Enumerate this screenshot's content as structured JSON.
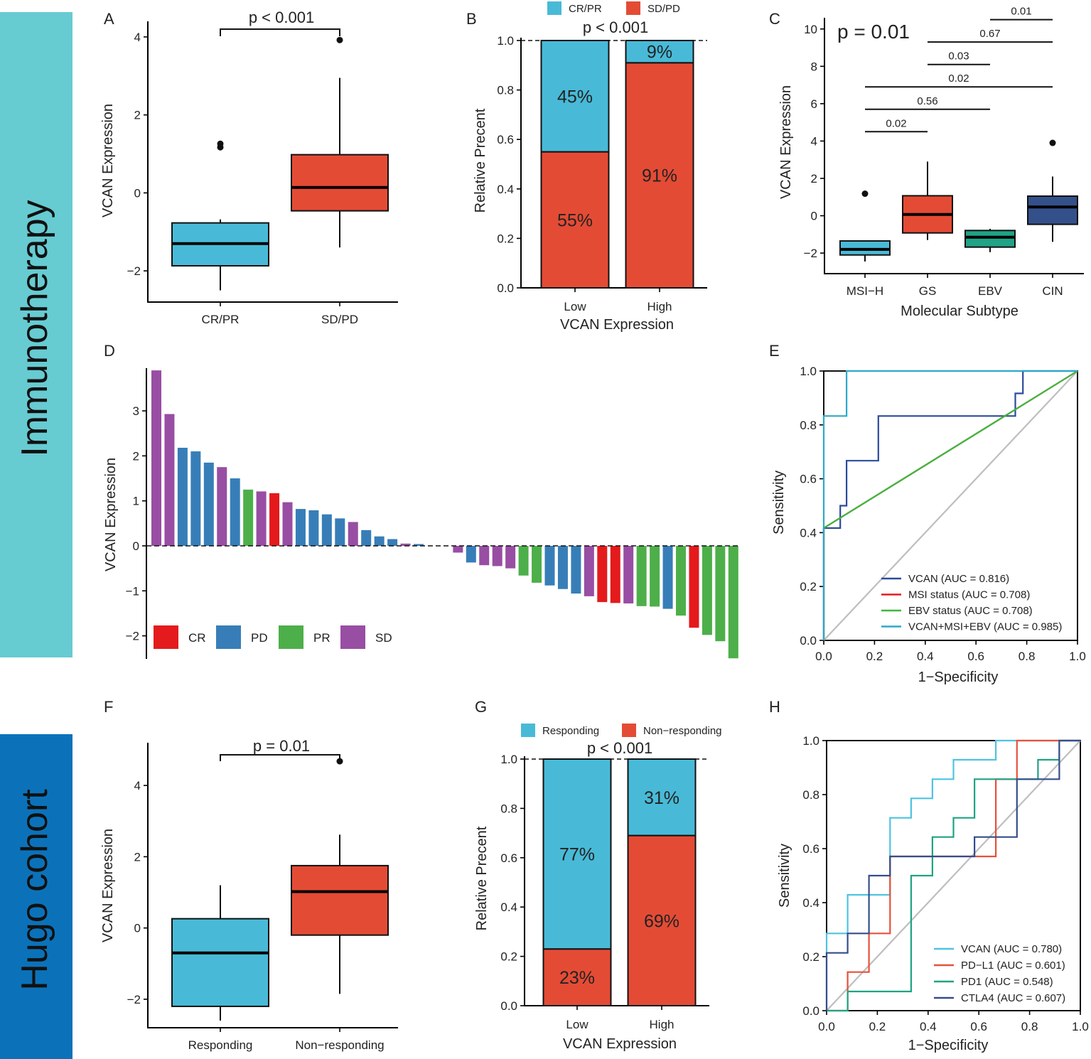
{
  "sidebars": {
    "immunotherapy": {
      "label": "Immunotherapy",
      "color": "#67CBD2"
    },
    "hugo": {
      "label": "Hugo cohort",
      "color": "#0B72BA"
    }
  },
  "colors": {
    "light_blue": "#48BAD7",
    "red": "#E44B35",
    "teal": "#20A386",
    "navy": "#34508A"
  },
  "chart_data": [
    {
      "panel": "A",
      "type": "box",
      "ylabel": "VCAN Expression",
      "ylim": [
        -2.8,
        4.4
      ],
      "yticks": [
        {
          "v": 4,
          "t": "4"
        },
        {
          "v": 2,
          "t": "2"
        },
        {
          "v": 0,
          "t": "0"
        },
        {
          "v": -2,
          "t": "−2"
        }
      ],
      "pvalue": "p < 0.001",
      "groups": [
        {
          "name": "CR/PR",
          "color": "#48BAD7",
          "q1": -1.87,
          "median": -1.3,
          "q3": -0.77,
          "whisker_low": -2.5,
          "whisker_high": -0.68,
          "outliers": [
            1.17,
            1.26
          ]
        },
        {
          "name": "SD/PD",
          "color": "#E44B35",
          "q1": -0.46,
          "median": 0.14,
          "q3": 0.98,
          "whisker_low": -1.4,
          "whisker_high": 2.95,
          "outliers": [
            3.92
          ]
        }
      ]
    },
    {
      "panel": "B",
      "type": "bar",
      "ylabel": "Relative Precent",
      "xlabel": "VCAN Expression",
      "ylim": [
        0,
        1
      ],
      "yticks": [
        "0.0",
        "0.2",
        "0.4",
        "0.6",
        "0.8",
        "1.0"
      ],
      "pvalue": "p < 0.001",
      "legend": [
        "CR/PR",
        "SD/PD"
      ],
      "categories": [
        "Low",
        "High"
      ],
      "series": [
        {
          "name": "SD/PD",
          "color": "#E44B35",
          "values": [
            0.55,
            0.91
          ],
          "labels": [
            "55%",
            "91%"
          ]
        },
        {
          "name": "CR/PR",
          "color": "#48BAD7",
          "values": [
            0.45,
            0.09
          ],
          "labels": [
            "45%",
            "9%"
          ]
        }
      ]
    },
    {
      "panel": "C",
      "type": "box",
      "ylabel": "VCAN Expression",
      "xlabel": "Molecular Subtype",
      "ylim": [
        -3.1,
        10.6
      ],
      "yticks": [
        {
          "v": 10,
          "t": "10"
        },
        {
          "v": 8,
          "t": "8"
        },
        {
          "v": 6,
          "t": "6"
        },
        {
          "v": 4,
          "t": "4"
        },
        {
          "v": 2,
          "t": "2"
        },
        {
          "v": 0,
          "t": "0"
        },
        {
          "v": -2,
          "t": "−2"
        }
      ],
      "pvalue": "p = 0.01",
      "groups": [
        {
          "name": "MSI−H",
          "color": "#48BAD7",
          "q1": -2.1,
          "median": -1.8,
          "q3": -1.35,
          "whisker_low": -2.45,
          "whisker_high": -1.35,
          "outliers": [
            1.18
          ]
        },
        {
          "name": "GS",
          "color": "#E44B35",
          "q1": -0.92,
          "median": 0.07,
          "q3": 1.07,
          "whisker_low": -1.3,
          "whisker_high": 2.9,
          "outliers": []
        },
        {
          "name": "EBV",
          "color": "#20A386",
          "q1": -1.68,
          "median": -1.15,
          "q3": -0.79,
          "whisker_low": -1.95,
          "whisker_high": -0.7,
          "outliers": []
        },
        {
          "name": "CIN",
          "color": "#34508A",
          "q1": -0.46,
          "median": 0.47,
          "q3": 1.05,
          "whisker_low": -1.4,
          "whisker_high": 2.1,
          "outliers": [
            3.9
          ]
        }
      ],
      "comparisons": [
        {
          "a": 0,
          "b": 1,
          "y": 4.5,
          "label": "0.02"
        },
        {
          "a": 0,
          "b": 2,
          "y": 5.7,
          "label": "0.56"
        },
        {
          "a": 0,
          "b": 3,
          "y": 6.9,
          "label": "0.02"
        },
        {
          "a": 1,
          "b": 2,
          "y": 8.1,
          "label": "0.03"
        },
        {
          "a": 1,
          "b": 3,
          "y": 9.3,
          "label": "0.67"
        },
        {
          "a": 2,
          "b": 3,
          "y": 10.5,
          "label": "0.01"
        }
      ]
    },
    {
      "panel": "D",
      "type": "bar",
      "ylabel": "VCAN Expression",
      "ylim": [
        -2.5,
        3.9
      ],
      "yticks": [
        {
          "v": 3,
          "t": "3"
        },
        {
          "v": 2,
          "t": "2"
        },
        {
          "v": 1,
          "t": "1"
        },
        {
          "v": 0,
          "t": "0"
        },
        {
          "v": -1,
          "t": "−1"
        },
        {
          "v": -2,
          "t": "−2"
        }
      ],
      "legend": [
        {
          "name": "CR",
          "color": "#E41A1C"
        },
        {
          "name": "PD",
          "color": "#377EB8"
        },
        {
          "name": "PR",
          "color": "#4DAF4A"
        },
        {
          "name": "SD",
          "color": "#984EA3"
        }
      ],
      "bars": [
        {
          "v": 3.9,
          "c": "SD"
        },
        {
          "v": 2.93,
          "c": "SD"
        },
        {
          "v": 2.18,
          "c": "PD"
        },
        {
          "v": 2.1,
          "c": "PD"
        },
        {
          "v": 1.85,
          "c": "PD"
        },
        {
          "v": 1.75,
          "c": "SD"
        },
        {
          "v": 1.5,
          "c": "PD"
        },
        {
          "v": 1.25,
          "c": "PR"
        },
        {
          "v": 1.21,
          "c": "SD"
        },
        {
          "v": 1.17,
          "c": "CR"
        },
        {
          "v": 0.97,
          "c": "SD"
        },
        {
          "v": 0.82,
          "c": "PD"
        },
        {
          "v": 0.79,
          "c": "PD"
        },
        {
          "v": 0.7,
          "c": "PD"
        },
        {
          "v": 0.61,
          "c": "PD"
        },
        {
          "v": 0.53,
          "c": "SD"
        },
        {
          "v": 0.35,
          "c": "PD"
        },
        {
          "v": 0.21,
          "c": "PD"
        },
        {
          "v": 0.15,
          "c": "PD"
        },
        {
          "v": 0.05,
          "c": "SD"
        },
        {
          "v": 0.04,
          "c": "PD"
        },
        {
          "v": 0.0,
          "c": "PD"
        },
        {
          "v": 0.0,
          "c": "PD"
        },
        {
          "v": -0.15,
          "c": "SD"
        },
        {
          "v": -0.37,
          "c": "PD"
        },
        {
          "v": -0.43,
          "c": "SD"
        },
        {
          "v": -0.45,
          "c": "SD"
        },
        {
          "v": -0.5,
          "c": "SD"
        },
        {
          "v": -0.66,
          "c": "PR"
        },
        {
          "v": -0.82,
          "c": "PR"
        },
        {
          "v": -0.88,
          "c": "PD"
        },
        {
          "v": -0.96,
          "c": "PD"
        },
        {
          "v": -1.06,
          "c": "PD"
        },
        {
          "v": -1.12,
          "c": "SD"
        },
        {
          "v": -1.25,
          "c": "CR"
        },
        {
          "v": -1.27,
          "c": "CR"
        },
        {
          "v": -1.28,
          "c": "SD"
        },
        {
          "v": -1.34,
          "c": "PR"
        },
        {
          "v": -1.35,
          "c": "PR"
        },
        {
          "v": -1.4,
          "c": "PD"
        },
        {
          "v": -1.55,
          "c": "PR"
        },
        {
          "v": -1.82,
          "c": "CR"
        },
        {
          "v": -1.98,
          "c": "PR"
        },
        {
          "v": -2.12,
          "c": "PR"
        },
        {
          "v": -2.5,
          "c": "PR"
        }
      ]
    },
    {
      "panel": "E",
      "type": "line",
      "xlabel": "1−Specificity",
      "ylabel": "Sensitivity",
      "xlim": [
        0,
        1
      ],
      "ylim": [
        0,
        1
      ],
      "ticks": [
        "0.0",
        "0.2",
        "0.4",
        "0.6",
        "0.8",
        "1.0"
      ],
      "series": [
        {
          "name": "VCAN (AUC = 0.816)",
          "color": "#2B4B9A",
          "points": [
            [
              0,
              0
            ],
            [
              0,
              0.417
            ],
            [
              0.065,
              0.417
            ],
            [
              0.065,
              0.5
            ],
            [
              0.09,
              0.5
            ],
            [
              0.09,
              0.667
            ],
            [
              0.215,
              0.667
            ],
            [
              0.215,
              0.833
            ],
            [
              0.755,
              0.833
            ],
            [
              0.755,
              0.917
            ],
            [
              0.785,
              0.917
            ],
            [
              0.785,
              1
            ],
            [
              1,
              1
            ]
          ]
        },
        {
          "name": "MSI status (AUC = 0.708)",
          "color": "#E41A1C",
          "points": [
            [
              0,
              0
            ],
            [
              0,
              0.417
            ],
            [
              1,
              1
            ]
          ]
        },
        {
          "name": "EBV status (AUC = 0.708)",
          "color": "#3DB83D",
          "points": [
            [
              0,
              0
            ],
            [
              0,
              0.417
            ],
            [
              1,
              1
            ]
          ]
        },
        {
          "name": "VCAN+MSI+EBV (AUC = 0.985)",
          "color": "#2BA9C9",
          "points": [
            [
              0,
              0
            ],
            [
              0,
              0.833
            ],
            [
              0.09,
              0.833
            ],
            [
              0.09,
              1
            ],
            [
              1,
              1
            ]
          ]
        }
      ]
    },
    {
      "panel": "F",
      "type": "box",
      "ylabel": "VCAN Expression",
      "ylim": [
        -2.8,
        5.2
      ],
      "yticks": [
        {
          "v": 4,
          "t": "4"
        },
        {
          "v": 2,
          "t": "2"
        },
        {
          "v": 0,
          "t": "0"
        },
        {
          "v": -2,
          "t": "−2"
        }
      ],
      "pvalue": "p = 0.01",
      "groups": [
        {
          "name": "Responding",
          "color": "#48BAD7",
          "q1": -2.2,
          "median": -0.7,
          "q3": 0.26,
          "whisker_low": -2.6,
          "whisker_high": 1.2,
          "outliers": []
        },
        {
          "name": "Non−responding",
          "color": "#E44B35",
          "q1": -0.2,
          "median": 1.02,
          "q3": 1.75,
          "whisker_low": -1.85,
          "whisker_high": 2.62,
          "outliers": [
            4.68
          ]
        }
      ]
    },
    {
      "panel": "G",
      "type": "bar",
      "ylabel": "Relative Precent",
      "xlabel": "VCAN Expression",
      "ylim": [
        0,
        1
      ],
      "yticks": [
        "0.0",
        "0.2",
        "0.4",
        "0.6",
        "0.8",
        "1.0"
      ],
      "pvalue": "p < 0.001",
      "legend": [
        "Responding",
        "Non−responding"
      ],
      "categories": [
        "Low",
        "High"
      ],
      "series": [
        {
          "name": "Non−responding",
          "color": "#E44B35",
          "values": [
            0.23,
            0.69
          ],
          "labels": [
            "23%",
            "69%"
          ]
        },
        {
          "name": "Responding",
          "color": "#48BAD7",
          "values": [
            0.77,
            0.31
          ],
          "labels": [
            "77%",
            "31%"
          ]
        }
      ]
    },
    {
      "panel": "H",
      "type": "line",
      "xlabel": "1−Specificity",
      "ylabel": "Sensitivity",
      "xlim": [
        0,
        1
      ],
      "ylim": [
        0,
        1
      ],
      "ticks": [
        "0.0",
        "0.2",
        "0.4",
        "0.6",
        "0.8",
        "1.0"
      ],
      "series": [
        {
          "name": "VCAN (AUC = 0.780)",
          "color": "#4FC3E0",
          "points": [
            [
              0,
              0
            ],
            [
              0,
              0.286
            ],
            [
              0.083,
              0.286
            ],
            [
              0.083,
              0.429
            ],
            [
              0.25,
              0.429
            ],
            [
              0.25,
              0.714
            ],
            [
              0.333,
              0.714
            ],
            [
              0.333,
              0.786
            ],
            [
              0.417,
              0.786
            ],
            [
              0.417,
              0.857
            ],
            [
              0.5,
              0.857
            ],
            [
              0.5,
              0.929
            ],
            [
              0.667,
              0.929
            ],
            [
              0.667,
              1
            ],
            [
              1,
              1
            ]
          ]
        },
        {
          "name": "PD−L1 (AUC = 0.601)",
          "color": "#E8503A",
          "points": [
            [
              0,
              0
            ],
            [
              0.083,
              0
            ],
            [
              0.083,
              0.143
            ],
            [
              0.167,
              0.143
            ],
            [
              0.167,
              0.286
            ],
            [
              0.25,
              0.286
            ],
            [
              0.25,
              0.571
            ],
            [
              0.667,
              0.571
            ],
            [
              0.667,
              0.857
            ],
            [
              0.75,
              0.857
            ],
            [
              0.75,
              1
            ],
            [
              1,
              1
            ]
          ]
        },
        {
          "name": "PD1 (AUC = 0.548)",
          "color": "#1FA383",
          "points": [
            [
              0,
              0
            ],
            [
              0.083,
              0
            ],
            [
              0.083,
              0.071
            ],
            [
              0.333,
              0.071
            ],
            [
              0.333,
              0.5
            ],
            [
              0.417,
              0.5
            ],
            [
              0.417,
              0.643
            ],
            [
              0.5,
              0.643
            ],
            [
              0.5,
              0.714
            ],
            [
              0.583,
              0.714
            ],
            [
              0.583,
              0.857
            ],
            [
              0.833,
              0.857
            ],
            [
              0.833,
              0.929
            ],
            [
              0.917,
              0.929
            ],
            [
              0.917,
              1
            ],
            [
              1,
              1
            ]
          ]
        },
        {
          "name": "CTLA4 (AUC = 0.607)",
          "color": "#354D8C",
          "points": [
            [
              0,
              0
            ],
            [
              0,
              0.214
            ],
            [
              0.083,
              0.214
            ],
            [
              0.083,
              0.286
            ],
            [
              0.167,
              0.286
            ],
            [
              0.167,
              0.5
            ],
            [
              0.25,
              0.5
            ],
            [
              0.25,
              0.571
            ],
            [
              0.583,
              0.571
            ],
            [
              0.583,
              0.643
            ],
            [
              0.75,
              0.643
            ],
            [
              0.75,
              0.857
            ],
            [
              0.917,
              0.857
            ],
            [
              0.917,
              1
            ],
            [
              1,
              1
            ]
          ]
        }
      ]
    }
  ]
}
